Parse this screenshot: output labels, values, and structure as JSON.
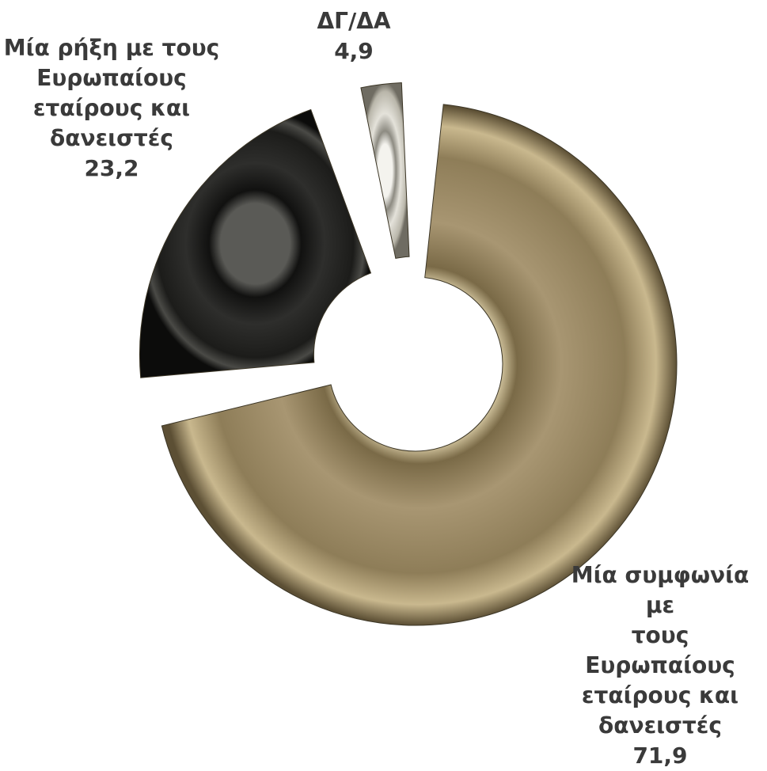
{
  "chart_data": {
    "type": "pie",
    "title": "",
    "categories": [
      "Μία συμφωνία με τους Ευρωπαίους εταίρους και δανειστές",
      "Μία ρήξη με τους Ευρωπαίους εταίρους και δανειστές",
      "ΔΓ/ΔΑ"
    ],
    "values": [
      71.9,
      23.2,
      4.9
    ],
    "value_labels": [
      "71,9",
      "23,2",
      "4,9"
    ],
    "label_lines": [
      "Μία συμφωνία με\nτους Ευρωπαίους\nεταίρους και\nδανειστές",
      "Μία ρήξη με τους\nΕυρωπαίους\nεταίρους και\nδανειστές",
      "ΔΓ/ΔΑ"
    ],
    "colors": [
      "#a8966c",
      "#2c2c2a",
      "#d2d0c6"
    ],
    "legend": "none",
    "donut": true
  }
}
